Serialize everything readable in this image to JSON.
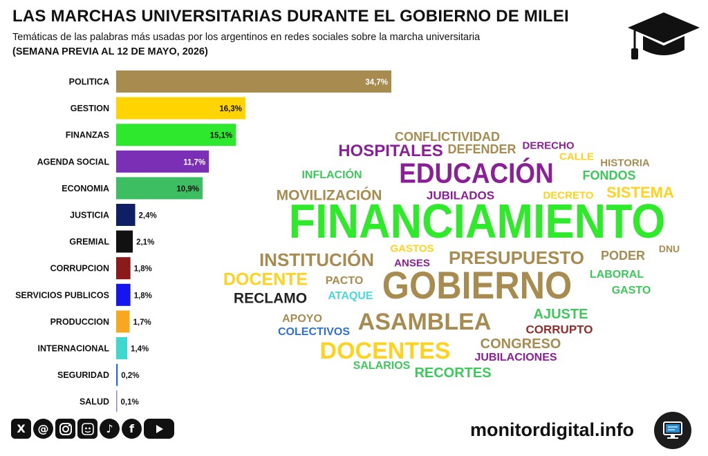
{
  "header": {
    "title": "LAS MARCHAS UNIVERSITARIAS DURANTE EL GOBIERNO DE MILEI",
    "subtitle": "Temáticas de las palabras más usadas por los argentinos en redes sociales sobre la marcha universitaria",
    "period": "(SEMANA PREVIA AL 12 DE MAYO, 2026)"
  },
  "chart_data": {
    "type": "bar",
    "orientation": "horizontal",
    "categories": [
      "POLITICA",
      "GESTION",
      "FINANZAS",
      "AGENDA SOCIAL",
      "ECONOMIA",
      "JUSTICIA",
      "GREMIAL",
      "CORRUPCION",
      "SERVICIOS PUBLICOS",
      "PRODUCCION",
      "INTERNACIONAL",
      "SEGURIDAD",
      "SALUD"
    ],
    "values": [
      34.7,
      16.3,
      15.1,
      11.7,
      10.9,
      2.4,
      2.1,
      1.8,
      1.8,
      1.7,
      1.4,
      0.2,
      0.1
    ],
    "value_labels": [
      "34,7%",
      "16,3%",
      "15,1%",
      "11,7%",
      "10,9%",
      "2,4%",
      "2,1%",
      "1,8%",
      "1,8%",
      "1,7%",
      "1,4%",
      "0,2%",
      "0,1%"
    ],
    "colors": [
      "#A88B4E",
      "#FFD400",
      "#2EE82E",
      "#7B2FB5",
      "#3DBE62",
      "#0F1F66",
      "#111111",
      "#8B1A1A",
      "#1515F0",
      "#F8A81E",
      "#3FD8D0",
      "#2A6FD8",
      "#9B7FC8"
    ],
    "xlim": [
      0,
      35
    ],
    "grid": false,
    "legend": "none"
  },
  "word_cloud": [
    {
      "text": "FINANCIAMIENTO",
      "color": "#2EEA2A"
    },
    {
      "text": "GOBIERNO",
      "color": "#A88B4E"
    },
    {
      "text": "EDUCACIÓN",
      "color": "#8B1F98"
    },
    {
      "text": "ASAMBLEA",
      "color": "#A88B4E"
    },
    {
      "text": "DOCENTES",
      "color": "#FFD21E"
    },
    {
      "text": "PRESUPUESTO",
      "color": "#A88B4E"
    },
    {
      "text": "INSTITUCIÓN",
      "color": "#A88B4E"
    },
    {
      "text": "HOSPITALES",
      "color": "#8B1F98"
    },
    {
      "text": "DOCENTE",
      "color": "#FFD21E"
    },
    {
      "text": "MOVILIZACIÓN",
      "color": "#A88B4E"
    },
    {
      "text": "SISTEMA",
      "color": "#FFD21E"
    },
    {
      "text": "RECLAMO",
      "color": "#222222"
    },
    {
      "text": "CONFLICTIVIDAD",
      "color": "#A88B4E"
    },
    {
      "text": "DEFENDER",
      "color": "#A88B4E"
    },
    {
      "text": "FONDOS",
      "color": "#3DC95A"
    },
    {
      "text": "AJUSTE",
      "color": "#3DC95A"
    },
    {
      "text": "CONGRESO",
      "color": "#A88B4E"
    },
    {
      "text": "RECORTES",
      "color": "#3DC95A"
    },
    {
      "text": "CORRUPTO",
      "color": "#962B2B"
    },
    {
      "text": "JUBILADOS",
      "color": "#8B1F98"
    },
    {
      "text": "INFLACIÓN",
      "color": "#3DC95A"
    },
    {
      "text": "PODER",
      "color": "#A88B4E"
    },
    {
      "text": "LABORAL",
      "color": "#3DC95A"
    },
    {
      "text": "JUBILACIONES",
      "color": "#8B1F98"
    },
    {
      "text": "COLECTIVOS",
      "color": "#2E6FD8"
    },
    {
      "text": "DERECHO",
      "color": "#8B1F98"
    },
    {
      "text": "CALLE",
      "color": "#FFD21E"
    },
    {
      "text": "HISTORIA",
      "color": "#A88B4E"
    },
    {
      "text": "DECRETO",
      "color": "#FFD21E"
    },
    {
      "text": "GASTOS",
      "color": "#FFD21E"
    },
    {
      "text": "ANSES",
      "color": "#8B1F98"
    },
    {
      "text": "DNU",
      "color": "#A88B4E"
    },
    {
      "text": "PACTO",
      "color": "#A88B4E"
    },
    {
      "text": "ATAQUE",
      "color": "#4BD8D8"
    },
    {
      "text": "GASTO",
      "color": "#3DC95A"
    },
    {
      "text": "APOYO",
      "color": "#A88B4E"
    },
    {
      "text": "SALARIOS",
      "color": "#3DC95A"
    }
  ],
  "footer": {
    "social_icons": [
      "x-icon",
      "threads-icon",
      "instagram-icon",
      "bluesky-icon",
      "tiktok-icon",
      "facebook-icon",
      "youtube-icon"
    ],
    "site": "monitordigital.info"
  }
}
